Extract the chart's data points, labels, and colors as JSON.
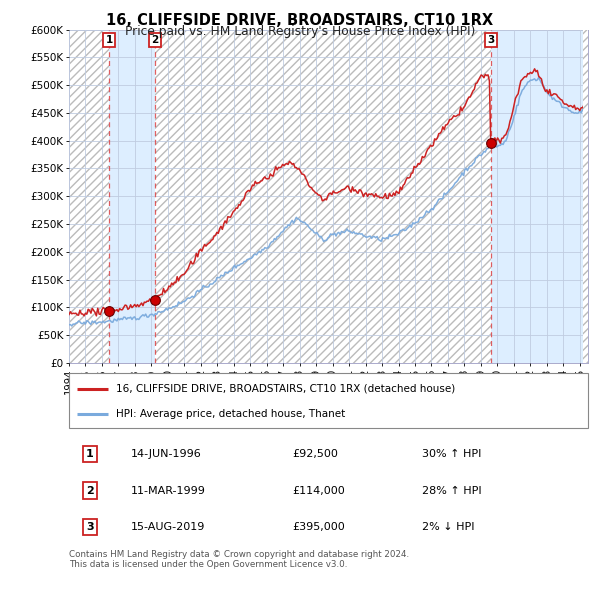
{
  "title": "16, CLIFFSIDE DRIVE, BROADSTAIRS, CT10 1RX",
  "subtitle": "Price paid vs. HM Land Registry's House Price Index (HPI)",
  "legend_line1": "16, CLIFFSIDE DRIVE, BROADSTAIRS, CT10 1RX (detached house)",
  "legend_line2": "HPI: Average price, detached house, Thanet",
  "transactions": [
    {
      "num": 1,
      "date": "14-JUN-1996",
      "year": 1996.45,
      "price": 92500,
      "pct": "30%",
      "dir": "↑"
    },
    {
      "num": 2,
      "date": "11-MAR-1999",
      "year": 1999.2,
      "price": 114000,
      "pct": "28%",
      "dir": "↑"
    },
    {
      "num": 3,
      "date": "15-AUG-2019",
      "year": 2019.62,
      "price": 395000,
      "pct": "2%",
      "dir": "↓"
    }
  ],
  "xmin": 1994.0,
  "xmax": 2025.5,
  "ymin": 0,
  "ymax": 600000,
  "yticks": [
    0,
    50000,
    100000,
    150000,
    200000,
    250000,
    300000,
    350000,
    400000,
    450000,
    500000,
    550000,
    600000
  ],
  "ytick_labels": [
    "£0",
    "£50K",
    "£100K",
    "£150K",
    "£200K",
    "£250K",
    "£300K",
    "£350K",
    "£400K",
    "£450K",
    "£500K",
    "£550K",
    "£600K"
  ],
  "hpi_color": "#7aaadd",
  "price_color": "#cc2222",
  "dot_color": "#cc0000",
  "chart_bg": "#e8f0f8",
  "grid_color": "#c0cce0",
  "hatch_color": "#bbbbbb",
  "owned_shade": "#ddeeff",
  "footer": "Contains HM Land Registry data © Crown copyright and database right 2024.\nThis data is licensed under the Open Government Licence v3.0.",
  "xtick_years": [
    1994,
    1995,
    1996,
    1997,
    1998,
    1999,
    2000,
    2001,
    2002,
    2003,
    2004,
    2005,
    2006,
    2007,
    2008,
    2009,
    2010,
    2011,
    2012,
    2013,
    2014,
    2015,
    2016,
    2017,
    2018,
    2019,
    2020,
    2021,
    2022,
    2023,
    2024,
    2025
  ]
}
